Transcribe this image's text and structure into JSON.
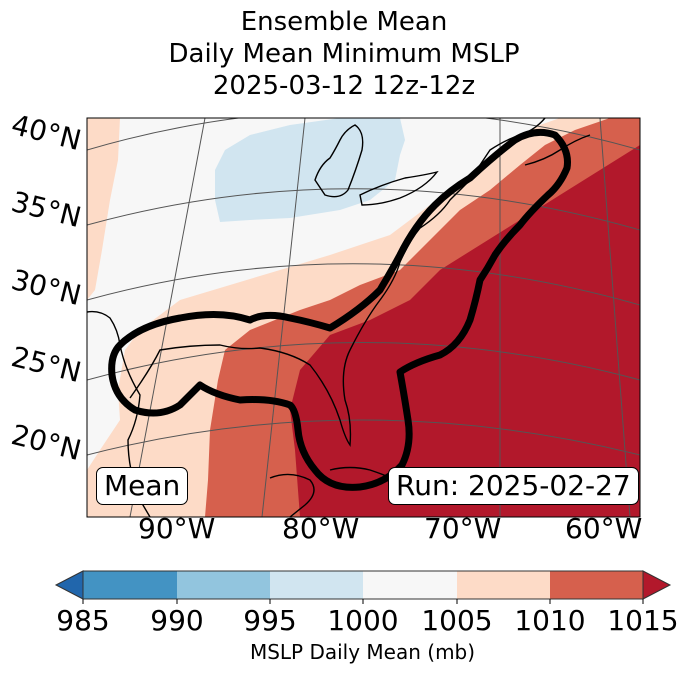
{
  "title": {
    "line1": "Ensemble Mean",
    "line2": "Daily Mean Minimum MSLP",
    "line3": "2025-03-12 12z-12z"
  },
  "map": {
    "lat_labels": [
      "40°N",
      "35°N",
      "30°N",
      "25°N",
      "20°N"
    ],
    "lon_labels": [
      "90°W",
      "80°W",
      "70°W",
      "60°W"
    ],
    "inset_left": "Mean",
    "inset_right": "Run: 2025-02-27",
    "contour_color": "#000000",
    "coastline_color": "#000000",
    "gridline_color": "#555555"
  },
  "colorbar": {
    "label": "MSLP Daily Mean (mb)",
    "ticks": [
      "985",
      "990",
      "995",
      "1000",
      "1005",
      "1010",
      "1015"
    ],
    "colors": {
      "under": "#2166ac",
      "b985_990": "#4393c3",
      "b990_995": "#92c5de",
      "b995_1000": "#d1e5f0",
      "b1000_1005": "#f7f7f7",
      "b1005_1010": "#fddbc7",
      "b1010_1015": "#d6604d",
      "over": "#b2182b"
    },
    "extend": "both"
  },
  "chart_data": {
    "type": "heatmap",
    "title": "Ensemble Mean / Daily Mean Minimum MSLP / 2025-03-12 12z-12z",
    "projection": "conic",
    "lat_ticks": [
      40,
      35,
      30,
      25,
      20
    ],
    "lon_ticks": [
      -90,
      -80,
      -70,
      -60
    ],
    "levels": [
      985,
      990,
      995,
      1000,
      1005,
      1010,
      1015
    ],
    "colorbar_label": "MSLP Daily Mean (mb)",
    "regions_present_mb": [
      "995-1000",
      "1000-1005",
      "1005-1010",
      "1010-1015",
      ">1015"
    ],
    "annotations": [
      "Mean",
      "Run: 2025-02-27"
    ],
    "features": [
      "coastlines",
      "thick black outline contour along Gulf of Mexico and US East Coast"
    ]
  }
}
